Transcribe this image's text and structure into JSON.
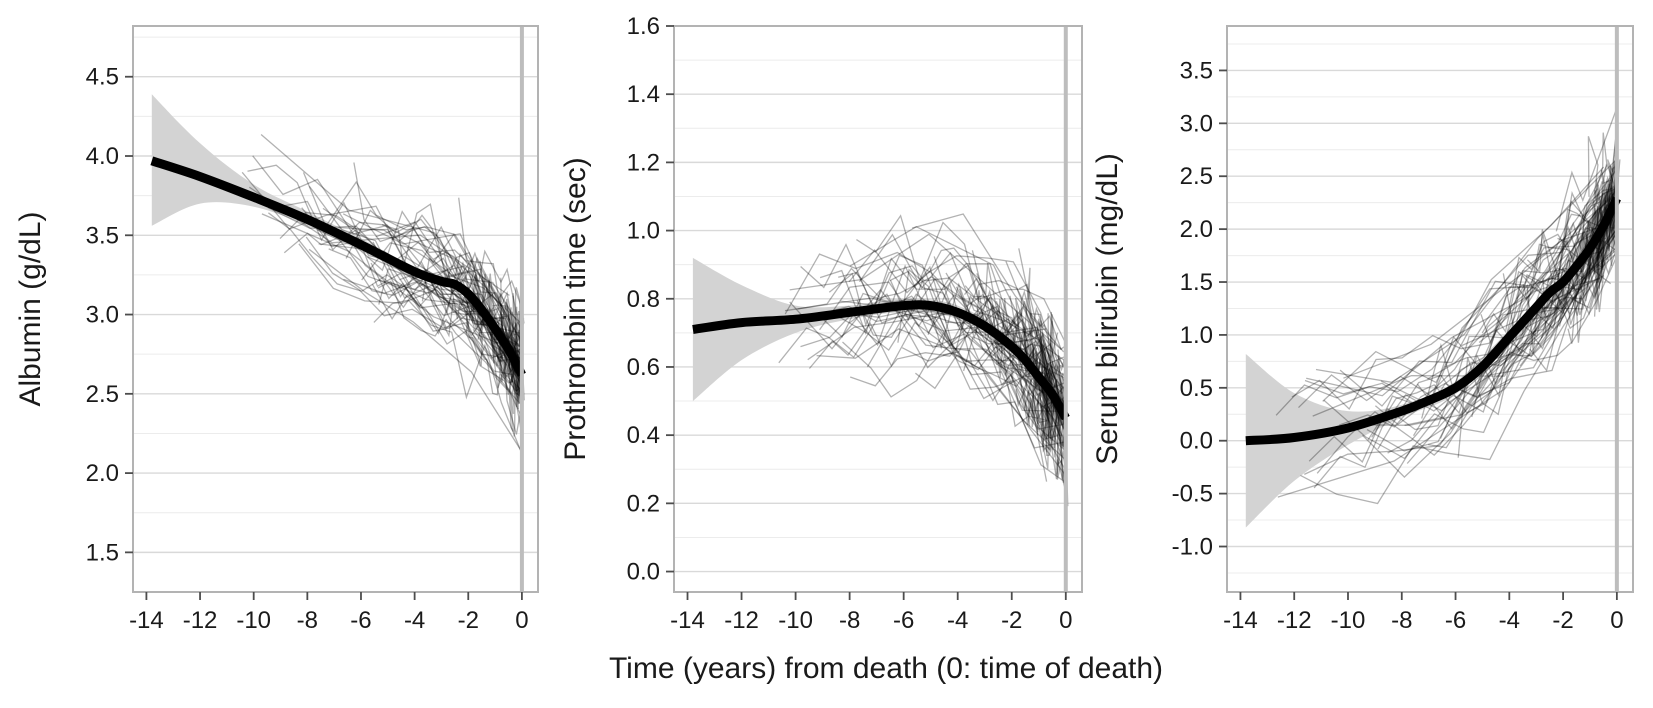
{
  "figure": {
    "shared_xlabel": "Time (years) from death (0: time of death)"
  },
  "chart_data": [
    {
      "type": "line",
      "ylabel": "Albumin (g/dL)",
      "xlabel": "",
      "xlim": [
        -14.5,
        0.6
      ],
      "ylim": [
        1.25,
        4.82
      ],
      "x_ticks": [
        -14,
        -12,
        -10,
        -8,
        -6,
        -4,
        -2,
        0
      ],
      "x_tick_labels": [
        "-14",
        "-12",
        "-10",
        "-8",
        "-6",
        "-4",
        "-2",
        "0"
      ],
      "y_ticks": [
        1.5,
        2.0,
        2.5,
        3.0,
        3.5,
        4.0,
        4.5
      ],
      "y_tick_labels": [
        "1.5",
        "2.0",
        "2.5",
        "3.0",
        "3.5",
        "4.0",
        "4.5"
      ],
      "grid": true,
      "reference_line_x": 0,
      "series": [
        {
          "role": "smooth fit",
          "color": "#000000",
          "x": [
            -13.8,
            -12,
            -10,
            -8,
            -6,
            -4,
            -3,
            -2.5,
            -2,
            -1.5,
            -1,
            -0.5,
            0
          ],
          "y": [
            3.97,
            3.87,
            3.74,
            3.6,
            3.44,
            3.27,
            3.21,
            3.19,
            3.13,
            3.03,
            2.91,
            2.78,
            2.62
          ]
        },
        {
          "role": "confidence band",
          "color": "#d3d3d3",
          "x": [
            -13.8,
            -12,
            -10,
            -8,
            -6,
            -4,
            -2,
            0
          ],
          "upper": [
            4.39,
            4.08,
            3.82,
            3.65,
            3.48,
            3.3,
            3.16,
            2.69
          ],
          "lower": [
            3.56,
            3.7,
            3.68,
            3.56,
            3.4,
            3.24,
            3.1,
            2.56
          ]
        }
      ],
      "individual_trajectories": {
        "color": "#000000",
        "opacity": 0.3,
        "count": 90
      }
    },
    {
      "type": "line",
      "ylabel": "Prothrombin time (sec)",
      "xlabel": "",
      "xlim": [
        -14.5,
        0.6
      ],
      "ylim": [
        -0.06,
        1.6
      ],
      "x_ticks": [
        -14,
        -12,
        -10,
        -8,
        -6,
        -4,
        -2,
        0
      ],
      "x_tick_labels": [
        "-14",
        "-12",
        "-10",
        "-8",
        "-6",
        "-4",
        "-2",
        "0"
      ],
      "y_ticks": [
        0.0,
        0.2,
        0.4,
        0.6,
        0.8,
        1.0,
        1.2,
        1.4,
        1.6
      ],
      "y_tick_labels": [
        "0.0",
        "0.2",
        "0.4",
        "0.6",
        "0.8",
        "1.0",
        "1.2",
        "1.4",
        "1.6"
      ],
      "grid": true,
      "reference_line_x": 0,
      "series": [
        {
          "role": "smooth fit",
          "color": "#000000",
          "x": [
            -13.8,
            -12,
            -10,
            -8,
            -6,
            -5,
            -4,
            -3,
            -2,
            -1.5,
            -1,
            -0.5,
            0
          ],
          "y": [
            0.71,
            0.73,
            0.74,
            0.76,
            0.78,
            0.78,
            0.76,
            0.72,
            0.66,
            0.62,
            0.57,
            0.52,
            0.45
          ]
        },
        {
          "role": "confidence band",
          "color": "#d3d3d3",
          "x": [
            -13.8,
            -12,
            -10,
            -8,
            -6,
            -4,
            -2,
            0
          ],
          "upper": [
            0.92,
            0.84,
            0.78,
            0.78,
            0.8,
            0.78,
            0.68,
            0.49
          ],
          "lower": [
            0.5,
            0.62,
            0.7,
            0.74,
            0.76,
            0.74,
            0.64,
            0.41
          ]
        }
      ],
      "individual_trajectories": {
        "color": "#000000",
        "opacity": 0.3,
        "count": 90
      }
    },
    {
      "type": "line",
      "ylabel": "Serum bilirubin (mg/dL)",
      "xlabel": "",
      "xlim": [
        -14.5,
        0.6
      ],
      "ylim": [
        -1.43,
        3.92
      ],
      "x_ticks": [
        -14,
        -12,
        -10,
        -8,
        -6,
        -4,
        -2,
        0
      ],
      "x_tick_labels": [
        "-14",
        "-12",
        "-10",
        "-8",
        "-6",
        "-4",
        "-2",
        "0"
      ],
      "y_ticks": [
        -1.0,
        -0.5,
        0.0,
        0.5,
        1.0,
        1.5,
        2.0,
        2.5,
        3.0,
        3.5
      ],
      "y_tick_labels": [
        "-1.0",
        "-0.5",
        "0.0",
        "0.5",
        "1.0",
        "1.5",
        "2.0",
        "2.5",
        "3.0",
        "3.5"
      ],
      "grid": true,
      "reference_line_x": 0,
      "series": [
        {
          "role": "smooth fit",
          "color": "#000000",
          "x": [
            -13.8,
            -12,
            -10,
            -8,
            -7,
            -6,
            -5,
            -4,
            -3,
            -2.5,
            -2,
            -1.5,
            -1,
            -0.5,
            0
          ],
          "y": [
            0.0,
            0.03,
            0.12,
            0.28,
            0.38,
            0.5,
            0.7,
            0.98,
            1.26,
            1.4,
            1.5,
            1.65,
            1.82,
            2.03,
            2.29
          ]
        },
        {
          "role": "confidence band",
          "color": "#d3d3d3",
          "x": [
            -13.8,
            -12,
            -10,
            -8,
            -6,
            -4,
            -2,
            0
          ],
          "upper": [
            0.82,
            0.45,
            0.28,
            0.34,
            0.56,
            1.05,
            1.6,
            2.6
          ],
          "lower": [
            -0.82,
            -0.38,
            -0.04,
            0.22,
            0.44,
            0.91,
            1.4,
            1.97
          ]
        }
      ],
      "individual_trajectories": {
        "color": "#000000",
        "opacity": 0.3,
        "count": 90
      }
    }
  ]
}
